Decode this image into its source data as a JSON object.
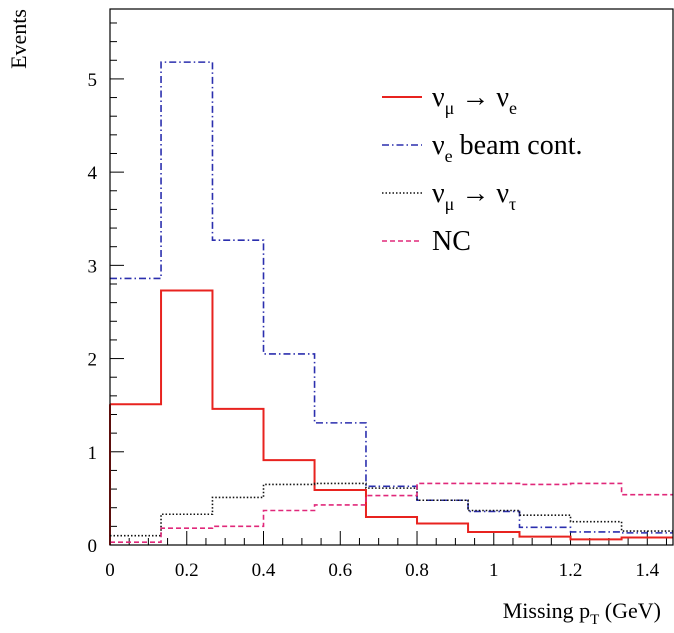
{
  "chart_data": {
    "type": "step-histogram",
    "title": "",
    "xlabel": {
      "main": "Missing p",
      "sub": "T",
      "unit": " (GeV)"
    },
    "ylabel": "Events",
    "xlim": [
      0,
      1.467
    ],
    "ylim": [
      0,
      5.75
    ],
    "x_ticks": [
      {
        "value": 0,
        "label": "0"
      },
      {
        "value": 0.2,
        "label": "0.2"
      },
      {
        "value": 0.4,
        "label": "0.4"
      },
      {
        "value": 0.6,
        "label": "0.6"
      },
      {
        "value": 0.8,
        "label": "0.8"
      },
      {
        "value": 1.0,
        "label": "1"
      },
      {
        "value": 1.2,
        "label": "1.2"
      },
      {
        "value": 1.4,
        "label": "1.4"
      }
    ],
    "y_ticks": [
      {
        "value": 0,
        "label": "0"
      },
      {
        "value": 1,
        "label": "1"
      },
      {
        "value": 2,
        "label": "2"
      },
      {
        "value": 3,
        "label": "3"
      },
      {
        "value": 4,
        "label": "4"
      },
      {
        "value": 5,
        "label": "5"
      }
    ],
    "bin_edges": [
      0,
      0.133,
      0.267,
      0.4,
      0.533,
      0.667,
      0.8,
      0.933,
      1.067,
      1.2,
      1.333,
      1.467
    ],
    "legend_position": "top-right",
    "series": [
      {
        "name": "ν_μ → ν_e",
        "legend": {
          "main": "ν",
          "sub1": "μ",
          "arrow": " → ",
          "main2": "ν",
          "sub2": "e",
          "rest": ""
        },
        "color": "#e8231f",
        "dash": "",
        "values": [
          1.51,
          2.73,
          1.46,
          0.91,
          0.59,
          0.3,
          0.23,
          0.14,
          0.09,
          0.06,
          0.08
        ]
      },
      {
        "name": "ν_e beam cont.",
        "legend": {
          "main": "ν",
          "sub1": "e",
          "arrow": "",
          "main2": "",
          "sub2": "",
          "rest": " beam cont."
        },
        "color": "#2b2fae",
        "dash": "7,3,1.5,3",
        "values": [
          2.86,
          5.18,
          3.27,
          2.05,
          1.31,
          0.63,
          0.48,
          0.36,
          0.19,
          0.14,
          0.13
        ]
      },
      {
        "name": "ν_μ → ν_τ",
        "legend": {
          "main": "ν",
          "sub1": "μ",
          "arrow": " → ",
          "main2": "ν",
          "sub2": "τ",
          "rest": ""
        },
        "color": "#111111",
        "dash": "1.5,2",
        "values": [
          0.1,
          0.33,
          0.51,
          0.65,
          0.66,
          0.61,
          0.48,
          0.37,
          0.32,
          0.25,
          0.15
        ]
      },
      {
        "name": "NC",
        "legend": {
          "main": "NC",
          "sub1": "",
          "arrow": "",
          "main2": "",
          "sub2": "",
          "rest": ""
        },
        "color": "#e0287a",
        "dash": "5,3",
        "values": [
          0.03,
          0.18,
          0.2,
          0.37,
          0.43,
          0.53,
          0.66,
          0.66,
          0.65,
          0.66,
          0.54
        ]
      }
    ]
  }
}
